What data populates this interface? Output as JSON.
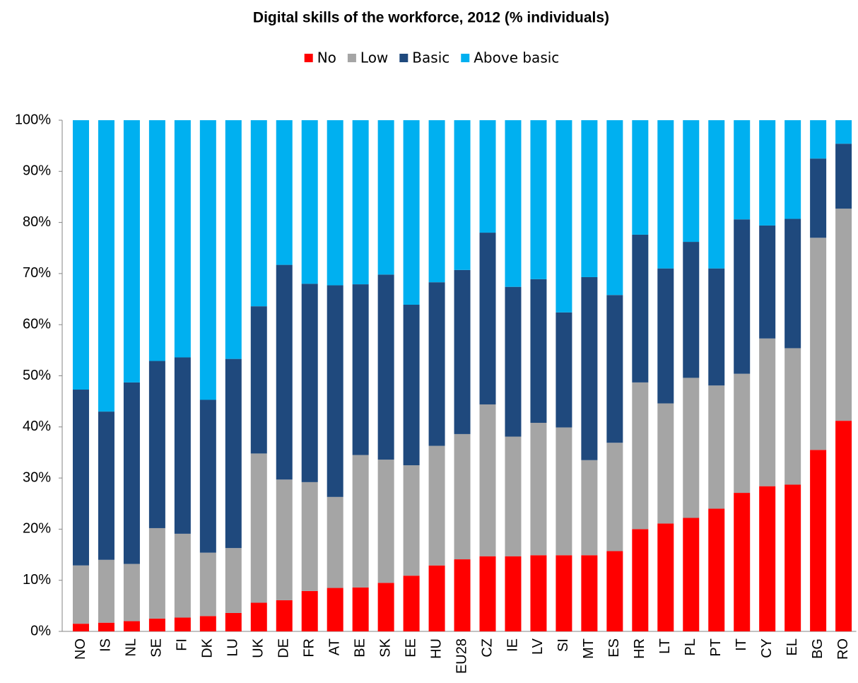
{
  "chart_data": {
    "type": "stacked_bar",
    "title": "Digital skills of the workforce, 2012 (% individuals)",
    "categories": [
      "NO",
      "IS",
      "NL",
      "SE",
      "FI",
      "DK",
      "LU",
      "UK",
      "DE",
      "FR",
      "AT",
      "BE",
      "SK",
      "EE",
      "HU",
      "EU28",
      "CZ",
      "IE",
      "LV",
      "SI",
      "MT",
      "ES",
      "HR",
      "LT",
      "PL",
      "PT",
      "IT",
      "CY",
      "EL",
      "BG",
      "RO"
    ],
    "series": [
      {
        "name": "No",
        "color": "#ff0000",
        "values": [
          1.5,
          1.7,
          2,
          2.5,
          2.7,
          3,
          3.6,
          5.6,
          6.1,
          7.9,
          8.5,
          8.6,
          9.5,
          10.9,
          12.9,
          14.1,
          14.7,
          14.7,
          14.9,
          14.9,
          14.9,
          15.7,
          20,
          21.1,
          22.2,
          24,
          27.1,
          28.4,
          28.7,
          35.5,
          41.2
        ]
      },
      {
        "name": "Low",
        "color": "#a5a5a5",
        "values": [
          11.4,
          12.3,
          11.2,
          17.7,
          16.4,
          12.4,
          12.7,
          29.2,
          23.6,
          21.3,
          17.8,
          25.9,
          24.1,
          21.6,
          23.4,
          24.5,
          29.7,
          23.4,
          25.9,
          25,
          18.6,
          21.2,
          28.7,
          23.5,
          27.4,
          24.1,
          23.3,
          28.9,
          26.7,
          41.5,
          41.5
        ]
      },
      {
        "name": "Basic",
        "color": "#1f497d",
        "values": [
          34.4,
          29,
          35.5,
          32.7,
          34.5,
          29.9,
          37,
          28.8,
          42,
          38.8,
          41.4,
          33.4,
          36.2,
          31.4,
          32,
          32.1,
          33.6,
          29.3,
          28.1,
          22.5,
          35.8,
          28.9,
          28.9,
          26.4,
          26.6,
          22.9,
          30.2,
          22.1,
          25.3,
          15.5,
          12.7
        ]
      },
      {
        "name": "Above basic",
        "color": "#00b0f0",
        "values": [
          52.7,
          57,
          51.3,
          47.1,
          46.4,
          54.7,
          46.7,
          36.4,
          28.3,
          32,
          32.3,
          32.1,
          30.2,
          36.1,
          31.7,
          29.3,
          22,
          32.6,
          31.1,
          37.6,
          30.7,
          34.2,
          22.4,
          29,
          23.8,
          29,
          19.4,
          20.6,
          19.3,
          7.5,
          4.6
        ]
      }
    ],
    "ylim": [
      0,
      100
    ],
    "yticks": [
      {
        "value": 0,
        "label": "0%"
      },
      {
        "value": 10,
        "label": "10%"
      },
      {
        "value": 20,
        "label": "20%"
      },
      {
        "value": 30,
        "label": "30%"
      },
      {
        "value": 40,
        "label": "40%"
      },
      {
        "value": 50,
        "label": "50%"
      },
      {
        "value": 60,
        "label": "60%"
      },
      {
        "value": 70,
        "label": "70%"
      },
      {
        "value": 80,
        "label": "80%"
      },
      {
        "value": 90,
        "label": "90%"
      },
      {
        "value": 100,
        "label": "100%"
      }
    ],
    "legend": "top"
  }
}
